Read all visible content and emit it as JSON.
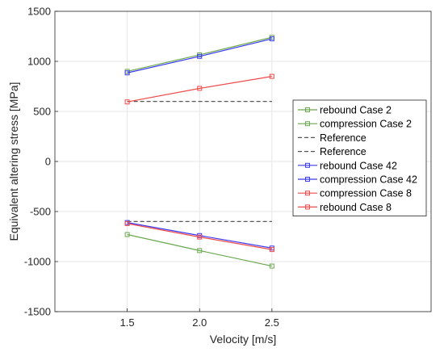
{
  "chart_data": {
    "type": "line",
    "xlabel": "Velocity [m/s]",
    "ylabel": "Equivalent altering stress [MPa]",
    "xlim": [
      1.0,
      3.6
    ],
    "ylim": [
      -1500,
      1500
    ],
    "x_ticks": [
      "1.5",
      "2.0",
      "2.5"
    ],
    "x_tick_values": [
      1.5,
      2.0,
      2.5
    ],
    "y_ticks": [
      "1500",
      "1000",
      "500",
      "0",
      "-500",
      "-1000",
      "-1500"
    ],
    "y_tick_values": [
      1500,
      1000,
      500,
      0,
      -500,
      -1000,
      -1500
    ],
    "grid": true,
    "legend_position": "right",
    "x": [
      1.5,
      2.0,
      2.5
    ],
    "series": [
      {
        "name": "rebound Case 2",
        "values": [
          900,
          1065,
          1240
        ],
        "color": "#6aa84f",
        "style": "solid",
        "marker": "square"
      },
      {
        "name": "compression Case 2",
        "values": [
          -730,
          -890,
          -1045
        ],
        "color": "#6aa84f",
        "style": "solid",
        "marker": "square"
      },
      {
        "name": "Reference",
        "values": [
          600,
          600,
          600
        ],
        "color": "#555555",
        "style": "dashed",
        "marker": "none"
      },
      {
        "name": "Reference",
        "values": [
          -600,
          -600,
          -600
        ],
        "color": "#555555",
        "style": "dashed",
        "marker": "none"
      },
      {
        "name": "rebound Case 42",
        "values": [
          885,
          1050,
          1225
        ],
        "color": "#3a3af0",
        "style": "solid",
        "marker": "square"
      },
      {
        "name": "compression Case 42",
        "values": [
          -610,
          -740,
          -865
        ],
        "color": "#3a3af0",
        "style": "solid",
        "marker": "square"
      },
      {
        "name": "compression Case 8",
        "values": [
          -620,
          -755,
          -880
        ],
        "color": "#f04a4a",
        "style": "solid",
        "marker": "square"
      },
      {
        "name": "rebound Case 8",
        "values": [
          595,
          730,
          850
        ],
        "color": "#f04a4a",
        "style": "solid",
        "marker": "square"
      }
    ]
  }
}
